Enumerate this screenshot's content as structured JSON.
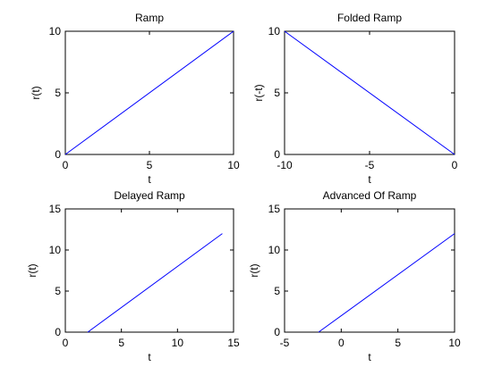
{
  "figure": {},
  "chart_data": [
    {
      "type": "line",
      "title": "Ramp",
      "xlabel": "t",
      "ylabel": "r(t)",
      "xlim": [
        0,
        10
      ],
      "ylim": [
        0,
        10
      ],
      "xticks": [
        0,
        5,
        10
      ],
      "yticks": [
        0,
        5,
        10
      ],
      "grid": false,
      "series": [
        {
          "x": [
            0,
            10
          ],
          "y": [
            0,
            10
          ],
          "color": "#0000ff"
        }
      ]
    },
    {
      "type": "line",
      "title": "Folded Ramp",
      "xlabel": "t",
      "ylabel": "r(-t)",
      "xlim": [
        -10,
        0
      ],
      "ylim": [
        0,
        10
      ],
      "xticks": [
        -10,
        -5,
        0
      ],
      "yticks": [
        0,
        5,
        10
      ],
      "grid": false,
      "series": [
        {
          "x": [
            -10,
            0
          ],
          "y": [
            10,
            0
          ],
          "color": "#0000ff"
        }
      ]
    },
    {
      "type": "line",
      "title": "Delayed Ramp",
      "xlabel": "t",
      "ylabel": "r(t)",
      "xlim": [
        0,
        15
      ],
      "ylim": [
        0,
        15
      ],
      "xticks": [
        0,
        5,
        10,
        15
      ],
      "yticks": [
        0,
        5,
        10,
        15
      ],
      "grid": false,
      "series": [
        {
          "x": [
            2,
            14
          ],
          "y": [
            0,
            12
          ],
          "color": "#0000ff"
        }
      ]
    },
    {
      "type": "line",
      "title": "Advanced Of Ramp",
      "xlabel": "t",
      "ylabel": "r(t)",
      "xlim": [
        -5,
        10
      ],
      "ylim": [
        0,
        15
      ],
      "xticks": [
        -5,
        0,
        5,
        10
      ],
      "yticks": [
        0,
        5,
        10,
        15
      ],
      "grid": false,
      "series": [
        {
          "x": [
            -2,
            10
          ],
          "y": [
            0,
            12
          ],
          "color": "#0000ff"
        }
      ]
    }
  ]
}
